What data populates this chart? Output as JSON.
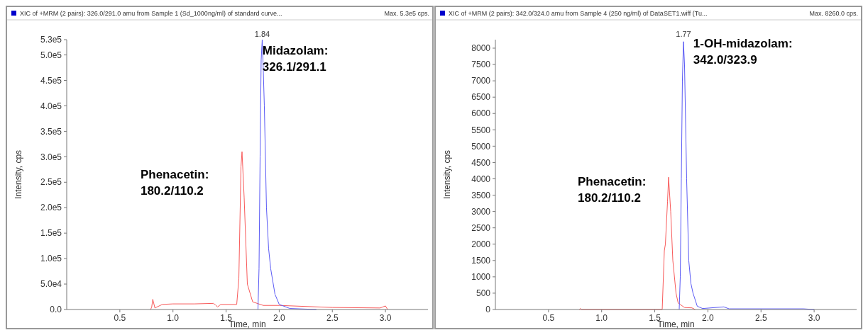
{
  "chart_data": [
    {
      "type": "line",
      "title": "XIC of +MRM (2 pairs): 326.0/291.0 amu from Sample 1 (Sd_1000ng/ml) of standard curve...",
      "xlabel": "Time, min",
      "ylabel": "Intensity, cps",
      "xlim": [
        0,
        3.4
      ],
      "xticks": [
        0.5,
        {
          "value": 1,
          "label": "1.0"
        },
        1.5,
        {
          "value": 2,
          "label": "2.0"
        },
        2.5,
        {
          "value": 3,
          "label": "3.0"
        }
      ],
      "ylim": [
        0,
        530000
      ],
      "yticks": [
        {
          "value": 0,
          "label": "0.0"
        },
        {
          "value": 50000,
          "label": "5.0e4"
        },
        {
          "value": 100000,
          "label": "1.0e5"
        },
        {
          "value": 150000,
          "label": "1.5e5"
        },
        {
          "value": 200000,
          "label": "2.0e5"
        },
        {
          "value": 250000,
          "label": "2.5e5"
        },
        {
          "value": 300000,
          "label": "3.0e5"
        },
        {
          "value": 350000,
          "label": "3.5e5"
        },
        {
          "value": 400000,
          "label": "4.0e5"
        },
        {
          "value": 450000,
          "label": "4.5e5"
        },
        {
          "value": 500000,
          "label": "5.0e5"
        },
        {
          "value": 530000,
          "label": "5.3e5"
        }
      ],
      "grid": false,
      "series": [
        {
          "color": "#f85a5a",
          "x": [
            0.79,
            0.8,
            0.81,
            0.83,
            0.9,
            1.0,
            1.2,
            1.38,
            1.4,
            1.42,
            1.45,
            1.6,
            1.62,
            1.64,
            1.65,
            1.67,
            1.7,
            1.75,
            1.85,
            2.0,
            2.5,
            2.95,
            3.0,
            3.02
          ],
          "values": [
            0,
            5000,
            20000,
            3000,
            10000,
            11000,
            11000,
            12000,
            9000,
            5000,
            10000,
            10000,
            60000,
            280000,
            310000,
            220000,
            50000,
            15000,
            8000,
            8000,
            4000,
            3000,
            7000,
            0
          ]
        },
        {
          "color": "#5a5af5",
          "x": [
            1.8,
            1.81,
            1.82,
            1.83,
            1.84,
            1.85,
            1.86,
            1.88,
            1.9,
            1.92,
            1.96,
            2.0,
            2.1,
            2.35
          ],
          "values": [
            0,
            80000,
            300000,
            490000,
            530000,
            470000,
            400000,
            200000,
            120000,
            80000,
            30000,
            10000,
            2000,
            0
          ]
        }
      ],
      "annotations": [
        {
          "text": "1.84",
          "x": 1.84,
          "y": 530000
        },
        "Midazolam:\n326.1/291.1",
        "Phenacetin:\n180.2/110.2",
        "Max. 5.3e5 cps."
      ]
    },
    {
      "type": "line",
      "title": "XIC of +MRM (2 pairs): 342.0/324.0 amu from Sample 4 (250 ng/ml) of DataSET1.wiff (Tu...",
      "xlabel": "Time, min",
      "ylabel": "Intensity, cps",
      "xlim": [
        0,
        3.4
      ],
      "xticks": [
        0.5,
        {
          "value": 1,
          "label": "1.0"
        },
        1.5,
        {
          "value": 2,
          "label": "2.0"
        },
        2.5,
        {
          "value": 3,
          "label": "3.0"
        }
      ],
      "ylim": [
        0,
        8260
      ],
      "yticks": [
        0,
        500,
        1000,
        1500,
        2000,
        2500,
        3000,
        3500,
        4000,
        4500,
        5000,
        5500,
        6000,
        6500,
        7000,
        7500,
        8000
      ],
      "grid": false,
      "series": [
        {
          "color": "#f85a5a",
          "x": [
            0.79,
            0.8,
            0.81,
            1.57,
            1.59,
            1.6,
            1.62,
            1.63,
            1.65,
            1.67,
            1.7,
            1.72,
            1.78,
            1.85,
            1.88
          ],
          "values": [
            0,
            30,
            0,
            0,
            1800,
            2000,
            3300,
            4050,
            3000,
            1500,
            500,
            200,
            60,
            50,
            0
          ]
        },
        {
          "color": "#5a5af5",
          "x": [
            1.73,
            1.74,
            1.75,
            1.76,
            1.77,
            1.78,
            1.8,
            1.82,
            1.84,
            1.86,
            1.9,
            1.95,
            2.15,
            2.2,
            2.9,
            3.0
          ],
          "values": [
            0,
            1000,
            4000,
            7000,
            8200,
            7500,
            4000,
            1500,
            800,
            500,
            100,
            30,
            80,
            20,
            20,
            0
          ]
        }
      ],
      "annotations": [
        {
          "text": "1.77",
          "x": 1.77,
          "y": 8260
        },
        "1-OH-midazolam:\n342.0/323.9",
        "Phenacetin:\n180.2/110.2",
        "Max. 8260.0 cps."
      ]
    }
  ]
}
